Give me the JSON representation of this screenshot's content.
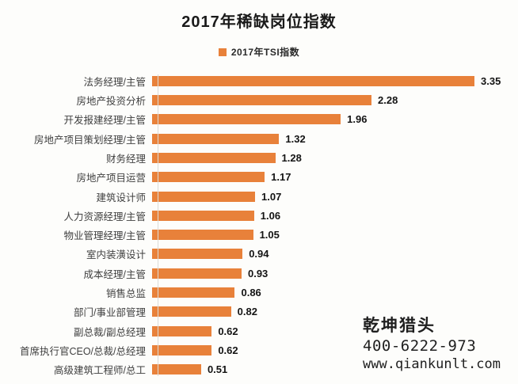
{
  "title": "2017年稀缺岗位指数",
  "legend": {
    "label": "2017年TSI指数"
  },
  "colors": {
    "bar": "#E8813A",
    "title": "#1A1A1A",
    "category_label": "#3F3F3F",
    "value_label": "#141414",
    "watermark": "#1F1F1F",
    "background": "#FDFDFB"
  },
  "chart_data": {
    "type": "bar",
    "orientation": "horizontal",
    "title": "2017年稀缺岗位指数",
    "legend_entries": [
      "2017年TSI指数"
    ],
    "legend_position": "top-center",
    "grid": false,
    "xlim": [
      0,
      3.5
    ],
    "value_labels_shown": true,
    "categories": [
      "法务经理/主管",
      "房地产投资分析",
      "开发报建经理/主管",
      "房地产项目策划经理/主管",
      "财务经理",
      "房地产项目运营",
      "建筑设计师",
      "人力资源经理/主管",
      "物业管理经理/主管",
      "室内装潢设计",
      "成本经理/主管",
      "销售总监",
      "部门/事业部管理",
      "副总裁/副总经理",
      "首席执行官CEO/总裁/总经理",
      "高级建筑工程师/总工"
    ],
    "values": [
      3.35,
      2.28,
      1.96,
      1.32,
      1.28,
      1.17,
      1.07,
      1.06,
      1.05,
      0.94,
      0.93,
      0.86,
      0.82,
      0.62,
      0.62,
      0.51
    ]
  },
  "watermark": {
    "brand": "乾坤猎头",
    "phone": "400-6222-973",
    "url": "www.qiankunlt.com"
  }
}
